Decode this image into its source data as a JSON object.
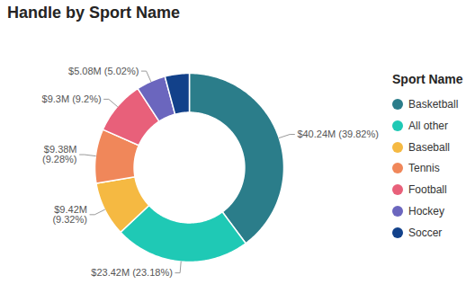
{
  "chart_data": {
    "type": "donut",
    "title": "Handle by Sport Name",
    "legend_title": "Sport Name",
    "legend": "right",
    "data_labels": true,
    "categories": [
      "Basketball",
      "All other",
      "Baseball",
      "Tennis",
      "Football",
      "Hockey",
      "Soccer"
    ],
    "values": [
      40.24,
      23.42,
      9.42,
      9.38,
      9.3,
      5.08,
      4.21
    ],
    "value_labels": [
      "$40.24M (39.82%)",
      "$23.42M (23.18%)",
      "$9.42M\n(9.32%)",
      "$9.38M\n(9.28%)",
      "$9.3M (9.2%)",
      "$5.08M (5.02%)",
      null
    ],
    "colors": [
      "#2b7d8a",
      "#1fc9b5",
      "#f5b942",
      "#f0875a",
      "#e8607a",
      "#6b66be",
      "#12418a"
    ]
  }
}
